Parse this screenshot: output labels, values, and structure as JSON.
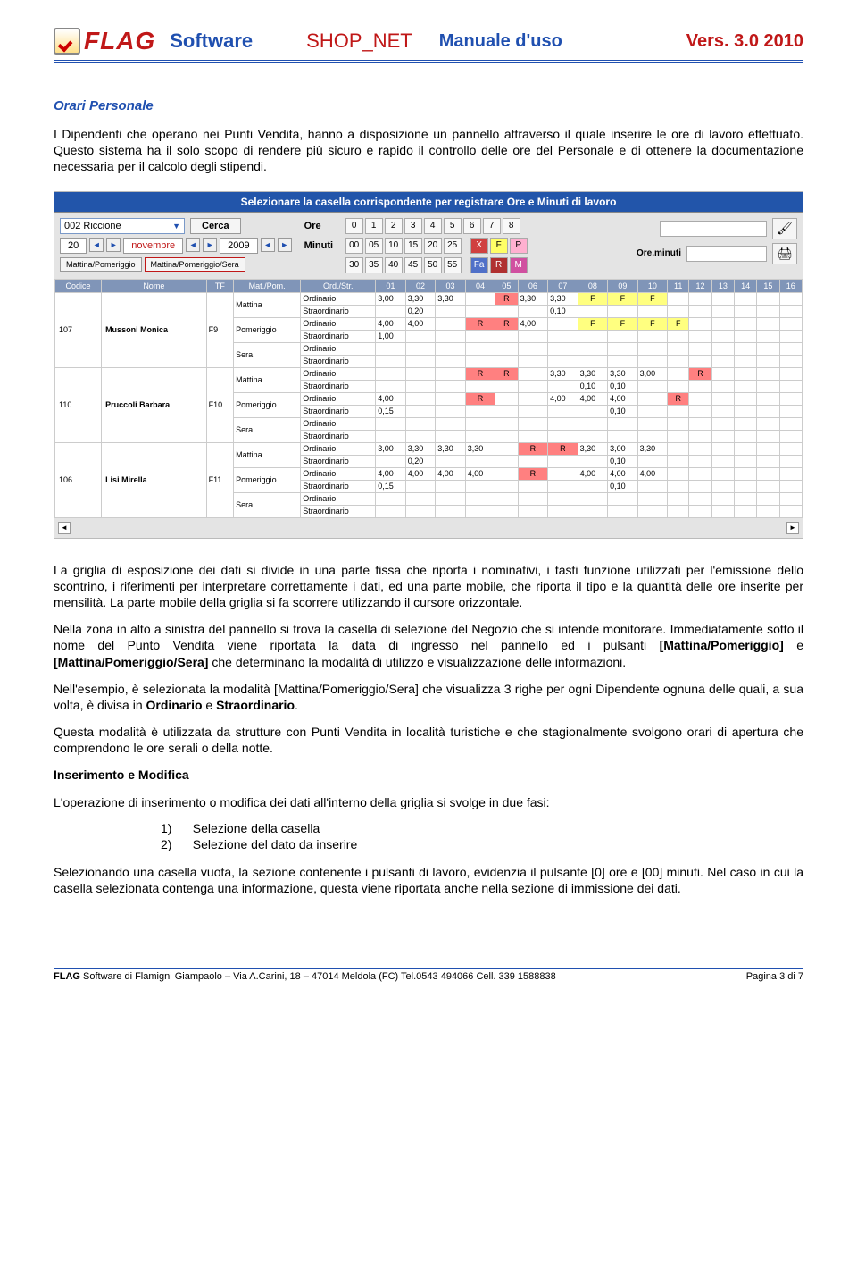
{
  "header": {
    "brand1": "FLAG",
    "brand2": "Software",
    "title": "SHOP_NET",
    "subtitle": "Manuale d'uso",
    "version": "Vers. 3.0 2010"
  },
  "section_title": "Orari Personale",
  "para1": "I Dipendenti che operano nei Punti Vendita, hanno a disposizione un pannello attraverso il quale inserire le ore di lavoro effettuato. Questo sistema ha il solo scopo di rendere più sicuro e rapido il controllo delle ore del Personale e di ottenere la documentazione necessaria per il calcolo degli stipendi.",
  "panel": {
    "topbar": "Selezionare la casella corrispondente per registrare Ore e Minuti di lavoro",
    "store": "002 Riccione",
    "cerca": "Cerca",
    "day": "20",
    "month": "novembre",
    "year": "2009",
    "mode1": "Mattina/Pomeriggio",
    "mode2": "Mattina/Pomeriggio/Sera",
    "ore_label": "Ore",
    "minuti_label": "Minuti",
    "ore_btns": [
      "0",
      "1",
      "2",
      "3",
      "4",
      "5",
      "6",
      "7",
      "8"
    ],
    "min_row1": [
      "00",
      "05",
      "10",
      "15",
      "20",
      "25"
    ],
    "min_row2": [
      "30",
      "35",
      "40",
      "45",
      "50",
      "55"
    ],
    "ext1": [
      "X",
      "F",
      "P"
    ],
    "ext2": [
      "Fa",
      "R",
      "M"
    ],
    "ore_minuti": "Ore,minuti",
    "grid": {
      "headers": [
        "Codice",
        "Nome",
        "TF",
        "Mat./Pom.",
        "Ord./Str.",
        "01",
        "02",
        "03",
        "04",
        "05",
        "06",
        "07",
        "08",
        "09",
        "10",
        "11",
        "12",
        "13",
        "14",
        "15",
        "16"
      ],
      "employees": [
        {
          "code": "107",
          "name": "Mussoni Monica",
          "tf": "F9",
          "rows": [
            {
              "sess": "Mattina",
              "t": "Ordinario",
              "cells": [
                "3,00",
                "3,30",
                "3,30",
                "",
                "R",
                "3,30",
                "3,30",
                "F",
                "F",
                "F",
                "",
                "",
                "",
                "",
                "",
                ""
              ]
            },
            {
              "sess": "",
              "t": "Straordinario",
              "cells": [
                "",
                "0,20",
                "",
                "",
                "",
                "",
                "0,10",
                "",
                "",
                "",
                "",
                "",
                "",
                "",
                "",
                ""
              ]
            },
            {
              "sess": "Pomeriggio",
              "t": "Ordinario",
              "cells": [
                "4,00",
                "4,00",
                "",
                "R",
                "R",
                "4,00",
                "",
                "F",
                "F",
                "F",
                "F",
                "",
                "",
                "",
                "",
                ""
              ]
            },
            {
              "sess": "",
              "t": "Straordinario",
              "cells": [
                "1,00",
                "",
                "",
                "",
                "",
                "",
                "",
                "",
                "",
                "",
                "",
                "",
                "",
                "",
                "",
                ""
              ]
            },
            {
              "sess": "Sera",
              "t": "Ordinario",
              "cells": [
                "",
                "",
                "",
                "",
                "",
                "",
                "",
                "",
                "",
                "",
                "",
                "",
                "",
                "",
                "",
                ""
              ]
            },
            {
              "sess": "",
              "t": "Straordinario",
              "cells": [
                "",
                "",
                "",
                "",
                "",
                "",
                "",
                "",
                "",
                "",
                "",
                "",
                "",
                "",
                "",
                ""
              ]
            }
          ]
        },
        {
          "code": "110",
          "name": "Pruccoli Barbara",
          "tf": "F10",
          "rows": [
            {
              "sess": "Mattina",
              "t": "Ordinario",
              "cells": [
                "",
                "",
                "",
                "R",
                "R",
                "",
                "3,30",
                "3,30",
                "3,30",
                "3,00",
                "",
                "R",
                "",
                "",
                "",
                ""
              ]
            },
            {
              "sess": "",
              "t": "Straordinario",
              "cells": [
                "",
                "",
                "",
                "",
                "",
                "",
                "",
                "0,10",
                "0,10",
                "",
                "",
                "",
                "",
                "",
                "",
                ""
              ]
            },
            {
              "sess": "Pomeriggio",
              "t": "Ordinario",
              "cells": [
                "4,00",
                "",
                "",
                "R",
                "",
                "",
                "4,00",
                "4,00",
                "4,00",
                "",
                "R",
                "",
                "",
                "",
                "",
                ""
              ]
            },
            {
              "sess": "",
              "t": "Straordinario",
              "cells": [
                "0,15",
                "",
                "",
                "",
                "",
                "",
                "",
                "",
                "0,10",
                "",
                "",
                "",
                "",
                "",
                "",
                ""
              ]
            },
            {
              "sess": "Sera",
              "t": "Ordinario",
              "cells": [
                "",
                "",
                "",
                "",
                "",
                "",
                "",
                "",
                "",
                "",
                "",
                "",
                "",
                "",
                "",
                ""
              ]
            },
            {
              "sess": "",
              "t": "Straordinario",
              "cells": [
                "",
                "",
                "",
                "",
                "",
                "",
                "",
                "",
                "",
                "",
                "",
                "",
                "",
                "",
                "",
                ""
              ]
            }
          ]
        },
        {
          "code": "106",
          "name": "Lisi Mirella",
          "tf": "F11",
          "rows": [
            {
              "sess": "Mattina",
              "t": "Ordinario",
              "cells": [
                "3,00",
                "3,30",
                "3,30",
                "3,30",
                "",
                "R",
                "R",
                "3,30",
                "3,00",
                "3,30",
                "",
                "",
                "",
                "",
                "",
                ""
              ]
            },
            {
              "sess": "",
              "t": "Straordinario",
              "cells": [
                "",
                "0,20",
                "",
                "",
                "",
                "",
                "",
                "",
                "0,10",
                "",
                "",
                "",
                "",
                "",
                "",
                ""
              ]
            },
            {
              "sess": "Pomeriggio",
              "t": "Ordinario",
              "cells": [
                "4,00",
                "4,00",
                "4,00",
                "4,00",
                "",
                "R",
                "",
                "4,00",
                "4,00",
                "4,00",
                "",
                "",
                "",
                "",
                "",
                ""
              ]
            },
            {
              "sess": "",
              "t": "Straordinario",
              "cells": [
                "0,15",
                "",
                "",
                "",
                "",
                "",
                "",
                "",
                "0,10",
                "",
                "",
                "",
                "",
                "",
                "",
                ""
              ]
            },
            {
              "sess": "Sera",
              "t": "Ordinario",
              "cells": [
                "",
                "",
                "",
                "",
                "",
                "",
                "",
                "",
                "",
                "",
                "",
                "",
                "",
                "",
                "",
                ""
              ]
            },
            {
              "sess": "",
              "t": "Straordinario",
              "cells": [
                "",
                "",
                "",
                "",
                "",
                "",
                "",
                "",
                "",
                "",
                "",
                "",
                "",
                "",
                "",
                ""
              ]
            }
          ]
        }
      ]
    }
  },
  "para2_a": "La griglia di esposizione dei dati si divide in una parte fissa che riporta i nominativi, i tasti funzione utilizzati per l'emissione dello scontrino, i riferimenti per interpretare correttamente i dati, ed una parte mobile, che riporta il tipo e la quantità delle ore inserite per mensilità.  La parte mobile della griglia si fa scorrere utilizzando il cursore orizzontale.",
  "para2_b_1": "Nella zona in alto a sinistra del pannello si trova la casella di selezione del Negozio che si intende monitorare. Immediatamente sotto il nome del Punto Vendita viene riportata la data di ingresso nel pannello ed i pulsanti ",
  "para2_b_2": "[Mattina/Pomeriggio]",
  "para2_b_3": " e ",
  "para2_b_4": "[Mattina/Pomeriggio/Sera]",
  "para2_b_5": " che determinano la modalità di utilizzo e visualizzazione delle informazioni.",
  "para2_c_1": "Nell'esempio, è selezionata la modalità [Mattina/Pomeriggio/Sera] che visualizza 3 righe per ogni Dipendente ognuna delle quali, a sua volta, è divisa in ",
  "para2_c_2": "Ordinario",
  "para2_c_3": " e ",
  "para2_c_4": "Straordinario",
  "para2_c_5": ".",
  "para2_d": "Questa modalità è utilizzata da strutture con Punti Vendita in località turistiche e che stagionalmente svolgono orari di apertura che comprendono le ore serali o della notte.",
  "h_ins": "Inserimento e Modifica",
  "para3": "L'operazione di inserimento o modifica dei dati all'interno della griglia si svolge in due fasi:",
  "list": {
    "i1": "1)",
    "t1": "Selezione della casella",
    "i2": "2)",
    "t2": "Selezione del dato da inserire"
  },
  "para4": "Selezionando una casella vuota, la sezione contenente i pulsanti di lavoro, evidenzia il pulsante [0] ore e [00] minuti. Nel caso in cui la casella selezionata contenga una informazione, questa viene riportata anche nella sezione di immissione dei dati.",
  "footer": {
    "left_bold": "FLAG",
    "left_rest": " Software di Flamigni Giampaolo – Via A.Carini, 18 – 47014  Meldola (FC)  Tel.0543 494066  Cell. 339 1588838",
    "right": "Pagina 3 di 7"
  }
}
